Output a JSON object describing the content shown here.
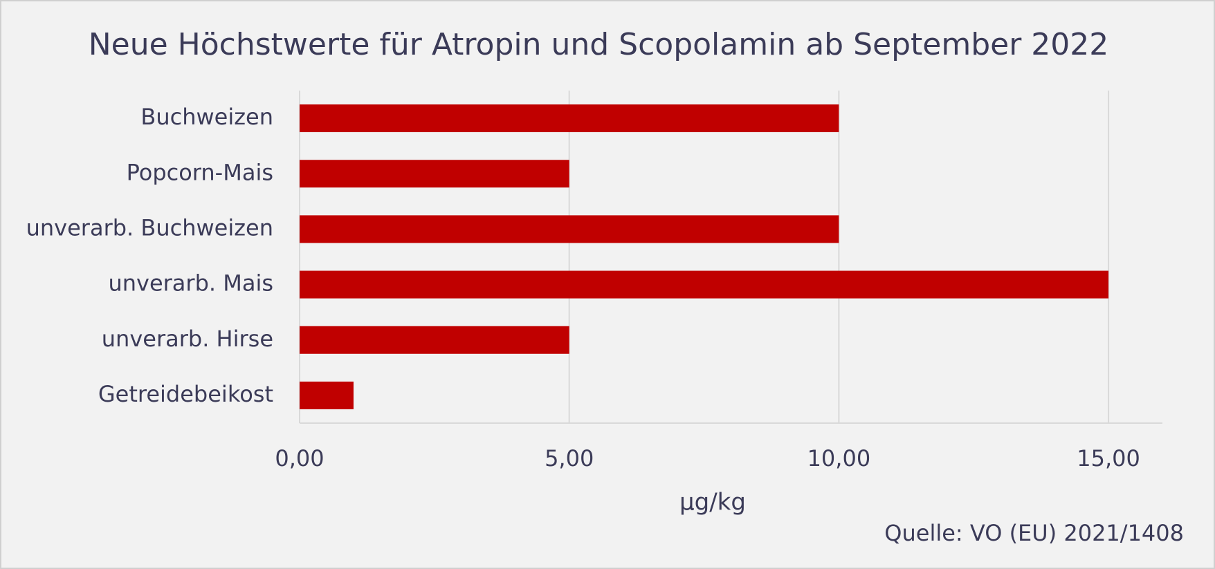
{
  "chart_data": {
    "type": "barh",
    "title": "Neue Höchstwerte für Atropin und Scopolamin ab September 2022",
    "categories": [
      "Buchweizen",
      "Popcorn-Mais",
      "unverarb. Buchweizen",
      "unverarb. Mais",
      "unverarb. Hirse",
      "Getreidebeikost"
    ],
    "values": [
      10,
      5,
      10,
      15,
      5,
      1
    ],
    "color": "#c00000",
    "xlabel": "µg/kg",
    "xlim": [
      0,
      16
    ],
    "xticks": [
      {
        "value": 0,
        "label": "0,00"
      },
      {
        "value": 5,
        "label": "5,00"
      },
      {
        "value": 10,
        "label": "10,00"
      },
      {
        "value": 15,
        "label": "15,00"
      }
    ],
    "grid": true,
    "source": "Quelle: VO (EU) 2021/1408"
  }
}
